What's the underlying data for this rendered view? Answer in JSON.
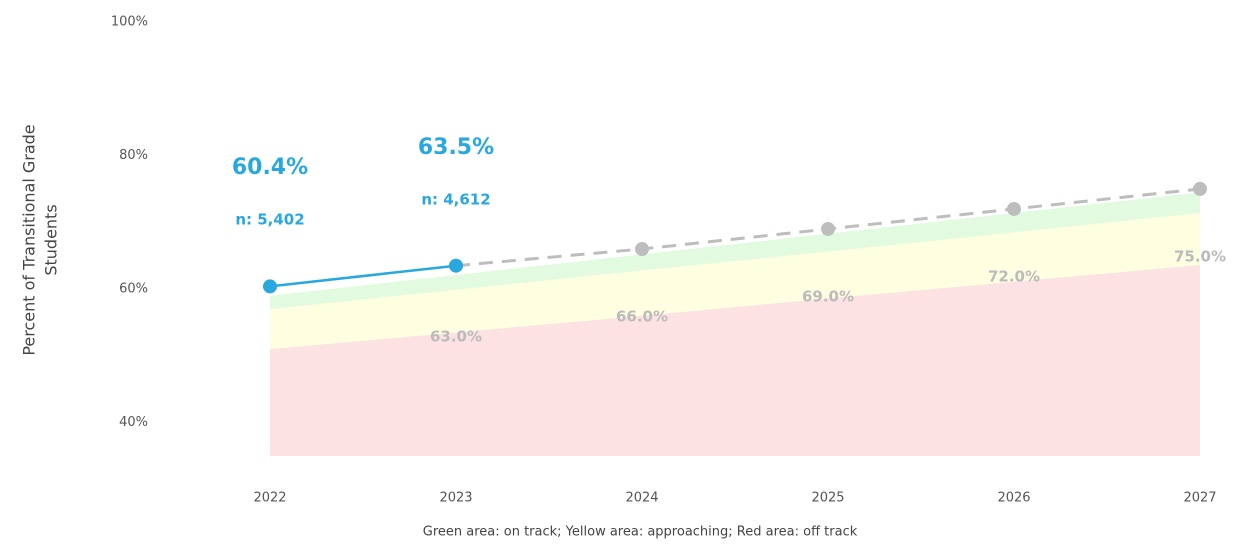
{
  "chart_data": {
    "type": "line",
    "ylabel": [
      "Percent of Transitional Grade",
      "Students"
    ],
    "note": "Green area: on track; Yellow area: approaching; Red area: off track",
    "categories": [
      "2022",
      "2023",
      "2024",
      "2025",
      "2026",
      "2027"
    ],
    "ylim": [
      35,
      100
    ],
    "yticks": [
      {
        "value": 40,
        "label": "40%"
      },
      {
        "value": 60,
        "label": "60%"
      },
      {
        "value": 80,
        "label": "80%"
      },
      {
        "value": 100,
        "label": "100%"
      }
    ],
    "areas": [
      {
        "color": "#e2fbe0",
        "upper": [
          59,
          62.1,
          65.2,
          68.3,
          71.4,
          74.5
        ]
      },
      {
        "color": "#fefee0",
        "upper": [
          57,
          59.9,
          62.8,
          65.6,
          68.5,
          71.4
        ]
      },
      {
        "color": "#fde2e3",
        "upper": [
          51,
          53.5,
          56,
          58.6,
          61.1,
          63.6
        ]
      }
    ],
    "series": [
      {
        "color": "#29a8e0",
        "values": [
          60.4,
          63.5,
          null,
          null,
          null,
          null
        ],
        "value_labels": [
          "60.4%",
          "63.5%",
          null,
          null,
          null,
          null
        ],
        "n_labels": [
          "n: 5,402",
          "n: 4,612",
          null,
          null,
          null,
          null
        ]
      },
      {
        "color": "#bdbdbd",
        "dashed": true,
        "values": [
          null,
          63.0,
          66.0,
          69.0,
          72.0,
          75.0
        ],
        "value_labels": [
          null,
          "63.0%",
          "66.0%",
          "69.0%",
          "72.0%",
          "75.0%"
        ]
      }
    ]
  }
}
